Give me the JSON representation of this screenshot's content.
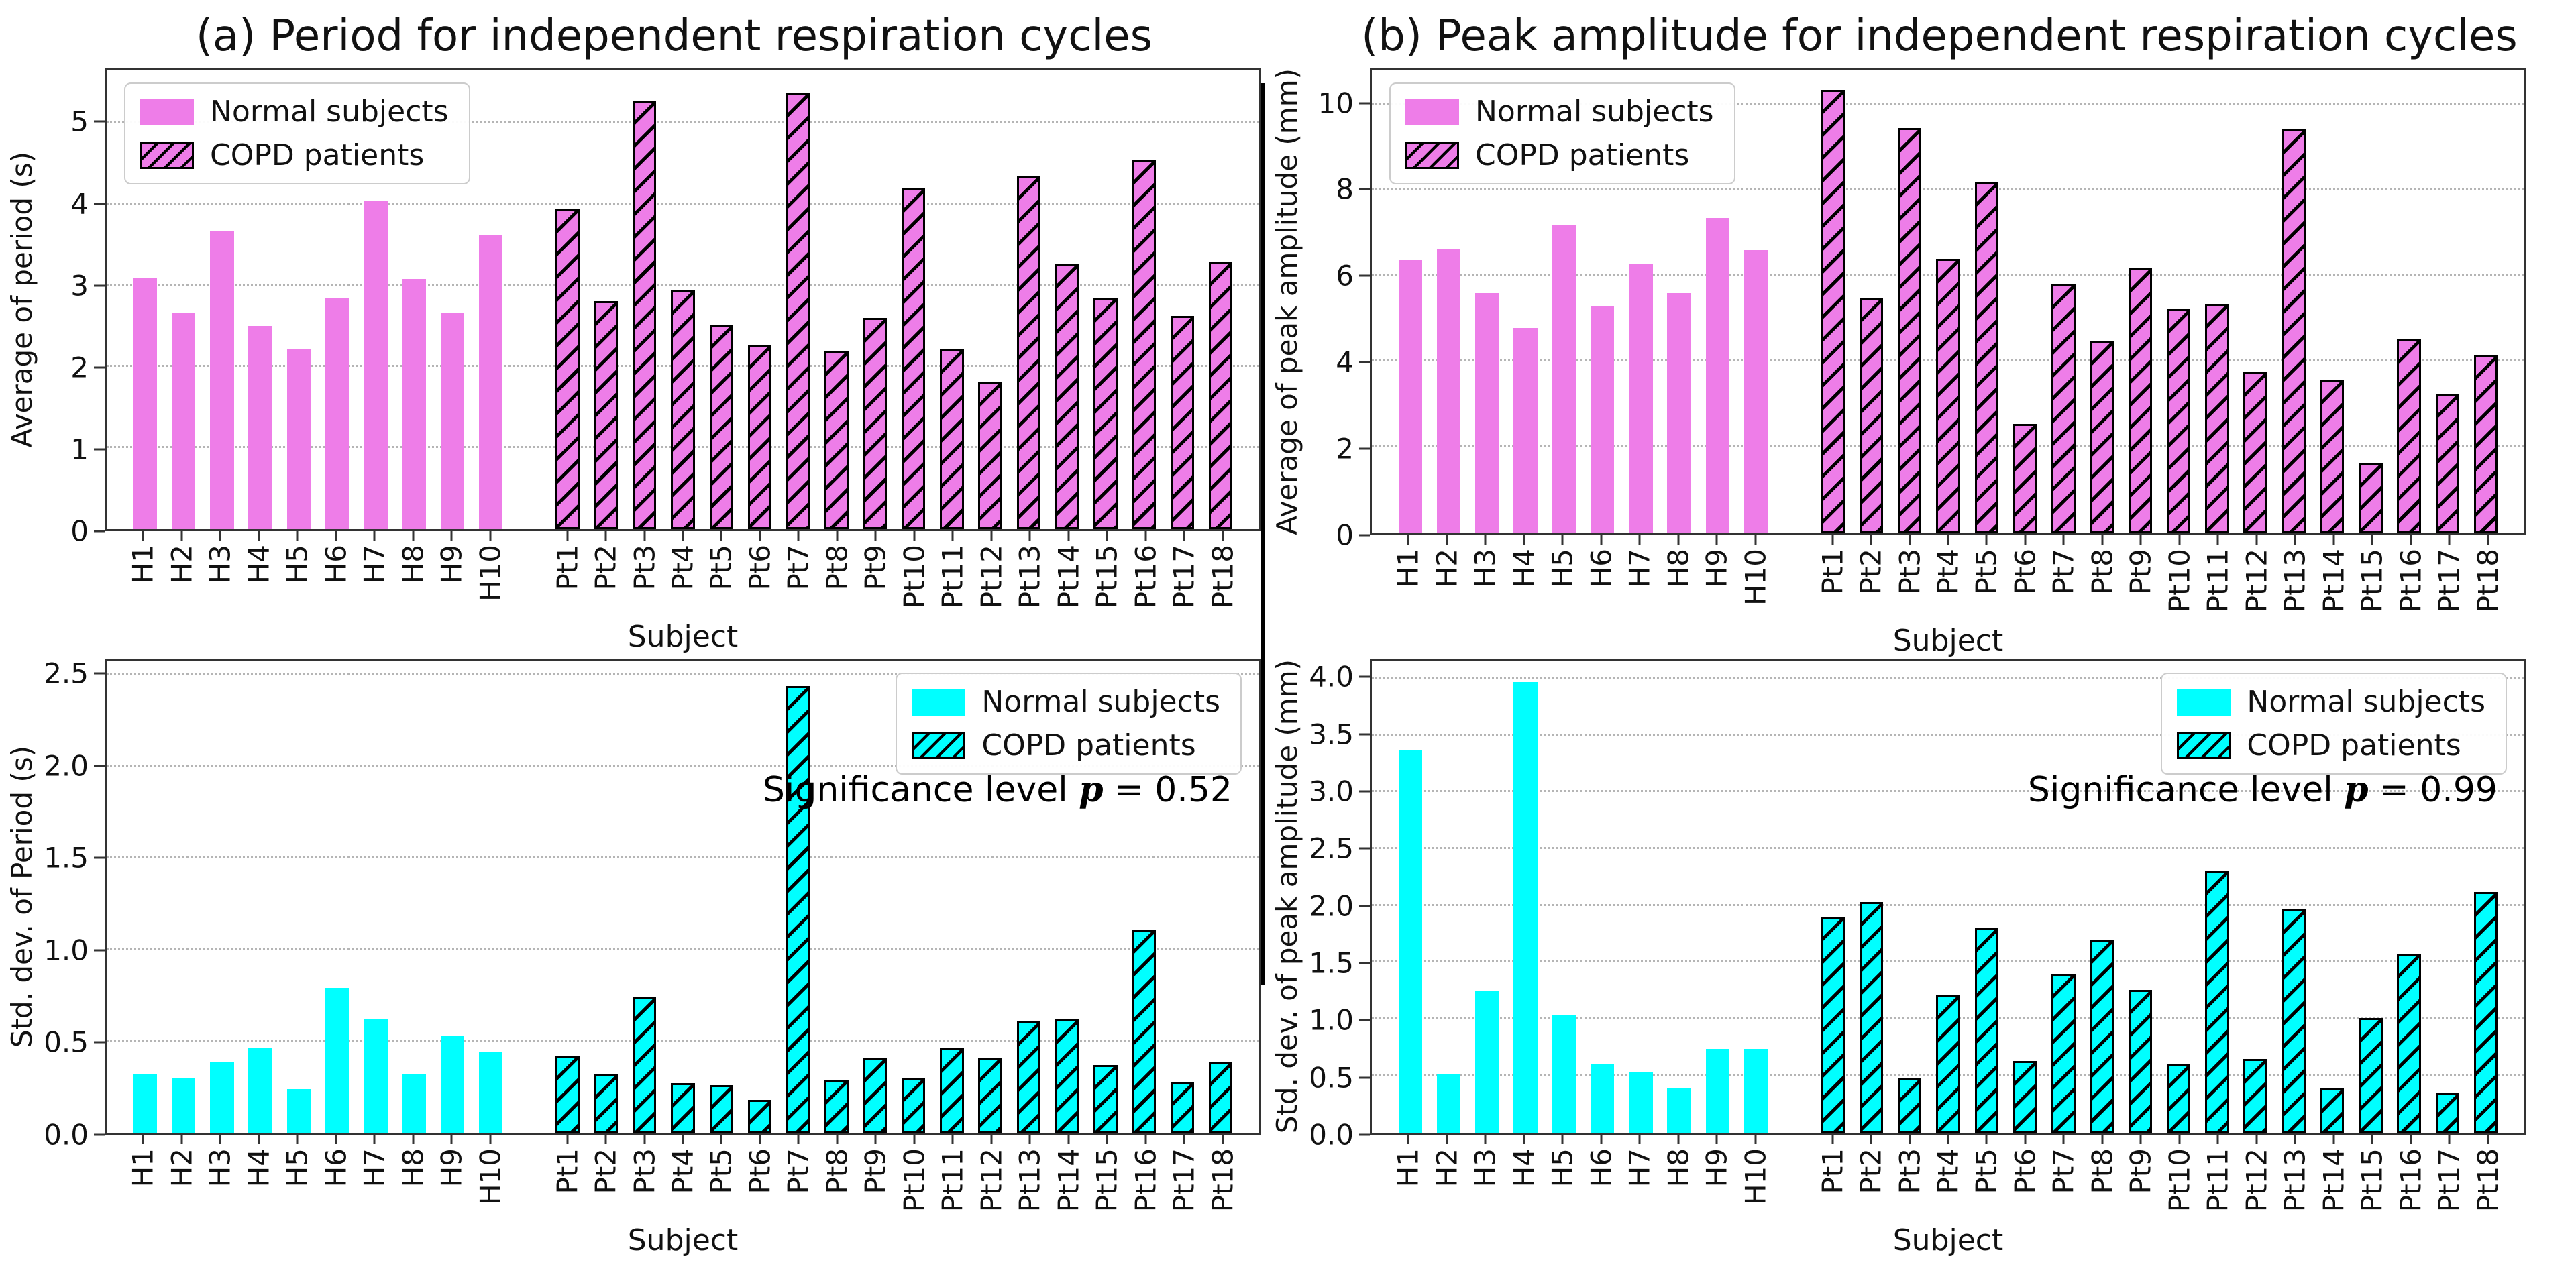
{
  "panels": [
    {
      "title": "(a) Period for independent respiration cycles"
    },
    {
      "title": "(b) Peak amplitude for independent respiration cycles"
    }
  ],
  "legend_labels": {
    "normal": "Normal subjects",
    "copd": "COPD patients"
  },
  "xlabel": "Subject",
  "colors": {
    "violet": "#EE7DE8",
    "cyan": "#00FFFF",
    "hatch_line": "#000000",
    "spine": "#333333"
  },
  "chart_data": [
    {
      "type": "bar",
      "panel": "a",
      "position": "top",
      "title": "(a) Period for independent respiration cycles",
      "ylabel": "Average of period (s)",
      "xlabel": "Subject",
      "ylim": [
        0,
        5.65
      ],
      "ytick_values": [
        0,
        1,
        2,
        3,
        4,
        5
      ],
      "ytick_labels": [
        "0",
        "1",
        "2",
        "3",
        "4",
        "5"
      ],
      "color": "#EE7DE8",
      "legend_position": "top-left",
      "grid": "dotted-horizontal",
      "categories": [
        "H1",
        "H2",
        "H3",
        "H4",
        "H5",
        "H6",
        "H7",
        "H8",
        "H9",
        "H10",
        "Pt1",
        "Pt2",
        "Pt3",
        "Pt4",
        "Pt5",
        "Pt6",
        "Pt7",
        "Pt8",
        "Pt9",
        "Pt10",
        "Pt11",
        "Pt12",
        "Pt13",
        "Pt14",
        "Pt15",
        "Pt16",
        "Pt17",
        "Pt18"
      ],
      "series": [
        {
          "name": "Normal subjects",
          "hatch": false,
          "values": [
            3.1,
            2.67,
            3.68,
            2.5,
            2.22,
            2.85,
            4.05,
            3.08,
            2.67,
            3.62
          ]
        },
        {
          "name": "COPD patients",
          "hatch": true,
          "values": [
            3.95,
            2.81,
            5.28,
            2.94,
            2.52,
            2.27,
            5.38,
            2.19,
            2.6,
            4.2,
            2.21,
            1.81,
            4.35,
            3.27,
            2.85,
            4.54,
            2.63,
            3.3
          ]
        }
      ],
      "significance": null
    },
    {
      "type": "bar",
      "panel": "a",
      "position": "bottom",
      "ylabel": "Std. dev. of Period (s)",
      "xlabel": "Subject",
      "ylim": [
        0,
        2.58
      ],
      "ytick_values": [
        0,
        0.5,
        1.0,
        1.5,
        2.0,
        2.5
      ],
      "ytick_labels": [
        "0.0",
        "0.5",
        "1.0",
        "1.5",
        "2.0",
        "2.5"
      ],
      "color": "#00FFFF",
      "legend_position": "top-right",
      "grid": "dotted-horizontal",
      "categories": [
        "H1",
        "H2",
        "H3",
        "H4",
        "H5",
        "H6",
        "H7",
        "H8",
        "H9",
        "H10",
        "Pt1",
        "Pt2",
        "Pt3",
        "Pt4",
        "Pt5",
        "Pt6",
        "Pt7",
        "Pt8",
        "Pt9",
        "Pt10",
        "Pt11",
        "Pt12",
        "Pt13",
        "Pt14",
        "Pt15",
        "Pt16",
        "Pt17",
        "Pt18"
      ],
      "series": [
        {
          "name": "Normal subjects",
          "hatch": false,
          "values": [
            0.32,
            0.3,
            0.39,
            0.46,
            0.24,
            0.79,
            0.62,
            0.32,
            0.53,
            0.44
          ]
        },
        {
          "name": "COPD patients",
          "hatch": true,
          "values": [
            0.42,
            0.32,
            0.74,
            0.27,
            0.26,
            0.18,
            2.44,
            0.29,
            0.41,
            0.3,
            0.46,
            0.41,
            0.61,
            0.62,
            0.37,
            1.11,
            0.28,
            0.39
          ]
        }
      ],
      "significance": {
        "label": "Significance level",
        "symbol": "p",
        "equals": "=",
        "value": "0.52"
      }
    },
    {
      "type": "bar",
      "panel": "b",
      "position": "top",
      "title": "(b) Peak amplitude for independent respiration cycles",
      "ylabel": "Average of peak amplitude (mm)",
      "xlabel": "Subject",
      "ylim": [
        0,
        10.8
      ],
      "ytick_values": [
        0,
        2,
        4,
        6,
        8,
        10
      ],
      "ytick_labels": [
        "0",
        "2",
        "4",
        "6",
        "8",
        "10"
      ],
      "color": "#EE7DE8",
      "legend_position": "top-left",
      "grid": "dotted-horizontal",
      "categories": [
        "H1",
        "H2",
        "H3",
        "H4",
        "H5",
        "H6",
        "H7",
        "H8",
        "H9",
        "H10",
        "Pt1",
        "Pt2",
        "Pt3",
        "Pt4",
        "Pt5",
        "Pt6",
        "Pt7",
        "Pt8",
        "Pt9",
        "Pt10",
        "Pt11",
        "Pt12",
        "Pt13",
        "Pt14",
        "Pt15",
        "Pt16",
        "Pt17",
        "Pt18"
      ],
      "series": [
        {
          "name": "Normal subjects",
          "hatch": false,
          "values": [
            6.38,
            6.62,
            5.6,
            4.78,
            7.18,
            5.3,
            6.28,
            5.6,
            7.35,
            6.6
          ]
        },
        {
          "name": "COPD patients",
          "hatch": true,
          "values": [
            10.35,
            5.5,
            9.45,
            6.4,
            8.2,
            2.55,
            5.8,
            4.48,
            6.18,
            5.22,
            5.35,
            3.75,
            9.42,
            3.58,
            1.62,
            4.52,
            3.25,
            4.15
          ]
        }
      ],
      "significance": null
    },
    {
      "type": "bar",
      "panel": "b",
      "position": "bottom",
      "ylabel": "Std. dev. of peak amplitude (mm)",
      "xlabel": "Subject",
      "ylim": [
        0,
        4.16
      ],
      "ytick_values": [
        0,
        0.5,
        1.0,
        1.5,
        2.0,
        2.5,
        3.0,
        3.5,
        4.0
      ],
      "ytick_labels": [
        "0.0",
        "0.5",
        "1.0",
        "1.5",
        "2.0",
        "2.5",
        "3.0",
        "3.5",
        "4.0"
      ],
      "color": "#00FFFF",
      "legend_position": "top-right",
      "grid": "dotted-horizontal",
      "categories": [
        "H1",
        "H2",
        "H3",
        "H4",
        "H5",
        "H6",
        "H7",
        "H8",
        "H9",
        "H10",
        "Pt1",
        "Pt2",
        "Pt3",
        "Pt4",
        "Pt5",
        "Pt6",
        "Pt7",
        "Pt8",
        "Pt9",
        "Pt10",
        "Pt11",
        "Pt12",
        "Pt13",
        "Pt14",
        "Pt15",
        "Pt16",
        "Pt17",
        "Pt18"
      ],
      "series": [
        {
          "name": "Normal subjects",
          "hatch": false,
          "values": [
            3.37,
            0.52,
            1.25,
            3.97,
            1.04,
            0.6,
            0.54,
            0.39,
            0.74,
            0.74
          ]
        },
        {
          "name": "COPD patients",
          "hatch": true,
          "values": [
            1.9,
            2.03,
            0.48,
            1.21,
            1.81,
            0.63,
            1.4,
            1.7,
            1.26,
            0.6,
            2.31,
            0.65,
            1.97,
            0.39,
            1.01,
            1.58,
            0.35,
            2.12
          ]
        }
      ],
      "significance": {
        "label": "Significance level",
        "symbol": "p",
        "equals": "=",
        "value": "0.99"
      }
    }
  ]
}
